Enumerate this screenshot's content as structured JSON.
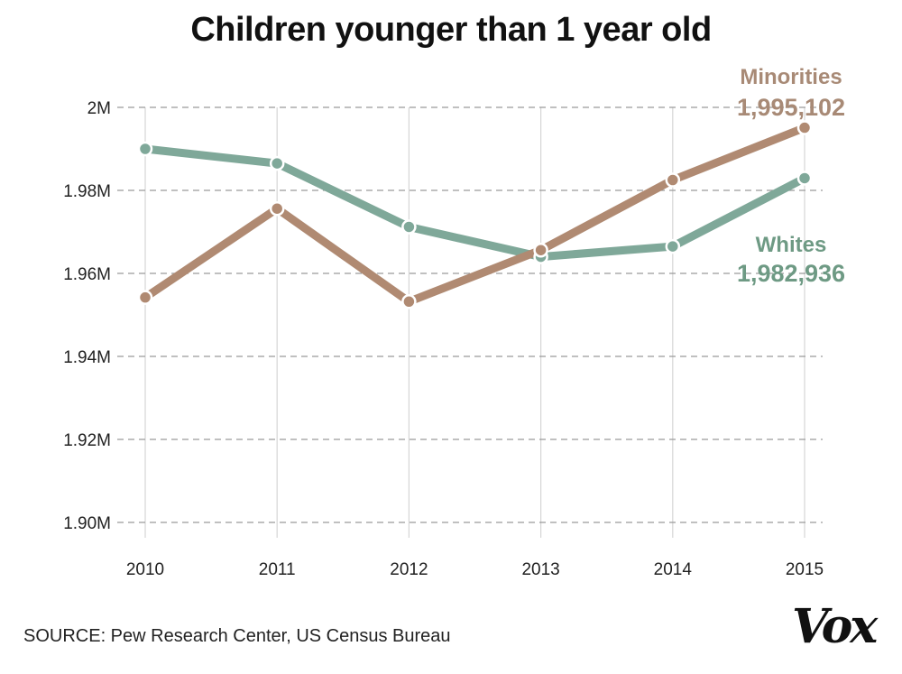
{
  "chart_data": {
    "type": "line",
    "title": "Children younger than 1 year old",
    "x": [
      "2010",
      "2011",
      "2012",
      "2013",
      "2014",
      "2015"
    ],
    "ylim": [
      1900000,
      2000000
    ],
    "yticks": [
      {
        "value": 2000000,
        "label": "2M"
      },
      {
        "value": 1980000,
        "label": "1.98M"
      },
      {
        "value": 1960000,
        "label": "1.96M"
      },
      {
        "value": 1940000,
        "label": "1.94M"
      },
      {
        "value": 1920000,
        "label": "1.92M"
      },
      {
        "value": 1900000,
        "label": "1.90M"
      }
    ],
    "grid": true,
    "series": [
      {
        "name": "Whites",
        "color": "#7fa899",
        "values": [
          1990000,
          1986500,
          1971200,
          1964000,
          1966500,
          1982936
        ],
        "end_label": "1,982,936",
        "label_color": "#6e9a84"
      },
      {
        "name": "Minorities",
        "color": "#b08a72",
        "values": [
          1954200,
          1975600,
          1953200,
          1965600,
          1982500,
          1995102
        ],
        "end_label": "1,995,102",
        "label_color": "#a88a76"
      }
    ]
  },
  "footer": {
    "source": "SOURCE: Pew Research Center, US Census Bureau",
    "brand": "Vox"
  }
}
